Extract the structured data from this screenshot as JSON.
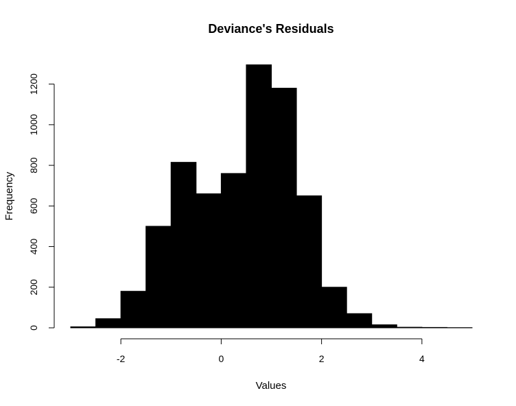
{
  "chart_data": {
    "type": "bar",
    "title": "Deviance's Residuals",
    "xlabel": "Values",
    "ylabel": "Frequency",
    "bin_edges": [
      -3,
      -2.5,
      -2,
      -1.5,
      -1,
      -0.5,
      0,
      0.5,
      1,
      1.5,
      2,
      2.5,
      3,
      3.5,
      4,
      4.5,
      5
    ],
    "values": [
      5,
      45,
      180,
      500,
      815,
      660,
      760,
      1295,
      1180,
      650,
      200,
      70,
      15,
      3,
      2,
      1
    ],
    "xlim": [
      -3,
      5
    ],
    "ylim": [
      0,
      1300
    ],
    "x_ticks": [
      -2,
      0,
      2,
      4
    ],
    "y_ticks": [
      0,
      200,
      400,
      600,
      800,
      1000,
      1200
    ],
    "bar_color": "#000000",
    "grid": false
  }
}
